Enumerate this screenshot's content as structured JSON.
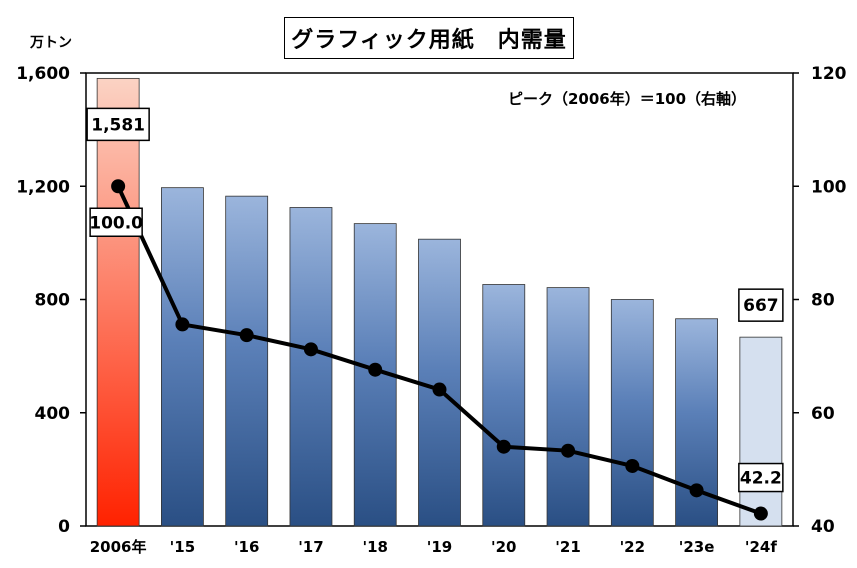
{
  "title": "グラフィック用紙　内需量",
  "unit_label": "万トン",
  "annotation": "ピーク（2006年）＝100（右軸）",
  "colors": {
    "peak_bar_top": "#fbd3c4",
    "peak_bar_bottom": "#ff2200",
    "bar_top": "#9bb5dc",
    "bar_bottom": "#2a4f84",
    "forecast_bar": "#d5e0ef",
    "line": "#000000"
  },
  "chart_data": {
    "type": "bar",
    "categories": [
      "2006年",
      "'15",
      "'16",
      "'17",
      "'18",
      "'19",
      "'20",
      "'21",
      "'22",
      "'23e",
      "'24f"
    ],
    "series": [
      {
        "axis": "left",
        "type": "bar",
        "values": [
          1581,
          1195,
          1165,
          1125,
          1068,
          1013,
          853,
          842,
          800,
          732,
          667
        ]
      },
      {
        "axis": "right",
        "type": "line",
        "values": [
          100.0,
          75.6,
          73.7,
          71.2,
          67.6,
          64.1,
          54.0,
          53.3,
          50.6,
          46.3,
          42.2
        ]
      }
    ],
    "data_labels": [
      {
        "series": 0,
        "index": 0,
        "text": "1,581"
      },
      {
        "series": 0,
        "index": 10,
        "text": "667"
      },
      {
        "series": 1,
        "index": 0,
        "text": "100.0"
      },
      {
        "series": 1,
        "index": 10,
        "text": "42.2"
      }
    ],
    "y_left": {
      "min": 0,
      "max": 1600,
      "ticks": [
        "0",
        "400",
        "800",
        "1,200",
        "1,600"
      ]
    },
    "y_right": {
      "min": 40,
      "max": 120,
      "ticks": [
        "40",
        "60",
        "80",
        "100",
        "120"
      ]
    },
    "grid": false,
    "legend": "none"
  }
}
